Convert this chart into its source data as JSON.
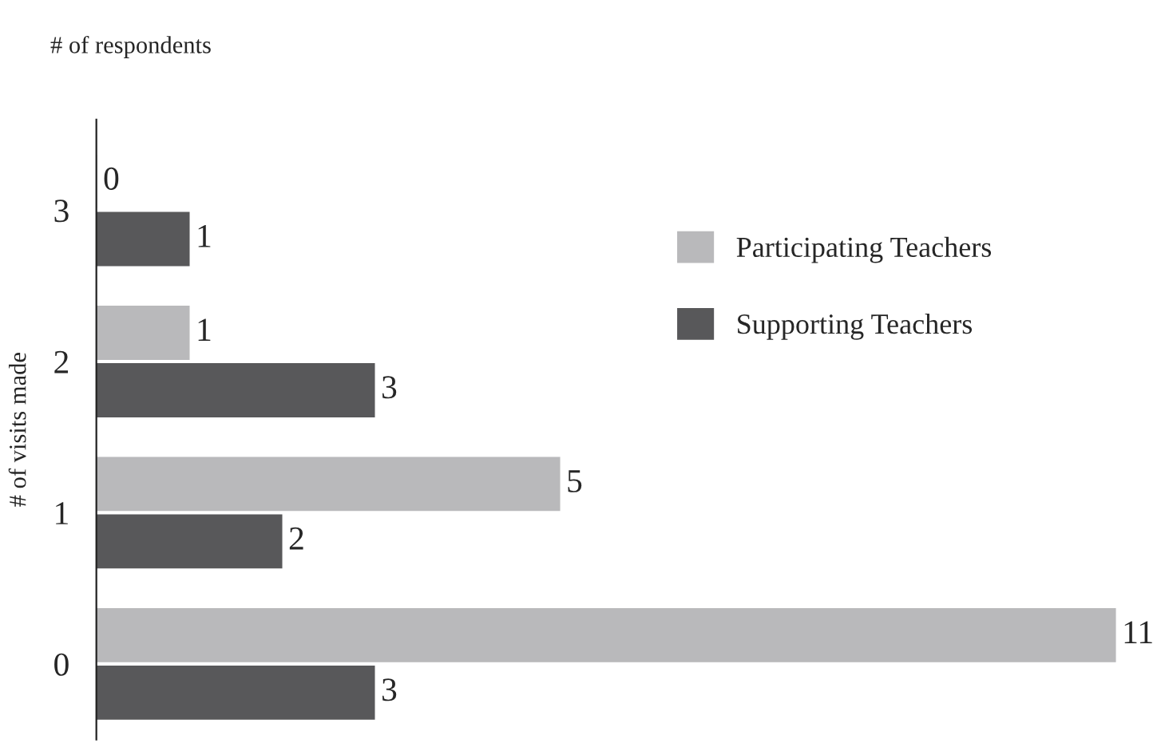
{
  "chart_data": {
    "type": "bar",
    "orientation": "horizontal",
    "xlabel": "# of respondents",
    "ylabel": "# of visits made",
    "categories": [
      "3",
      "2",
      "1",
      "0"
    ],
    "series": [
      {
        "name": "Participating Teachers",
        "color": "#b9b9bb",
        "values": [
          0,
          1,
          5,
          11
        ]
      },
      {
        "name": "Supporting Teachers",
        "color": "#58585a",
        "values": [
          1,
          3,
          2,
          3
        ]
      }
    ],
    "data_labels": true,
    "legend": "top right",
    "tick_labels": "y",
    "grid": false
  }
}
